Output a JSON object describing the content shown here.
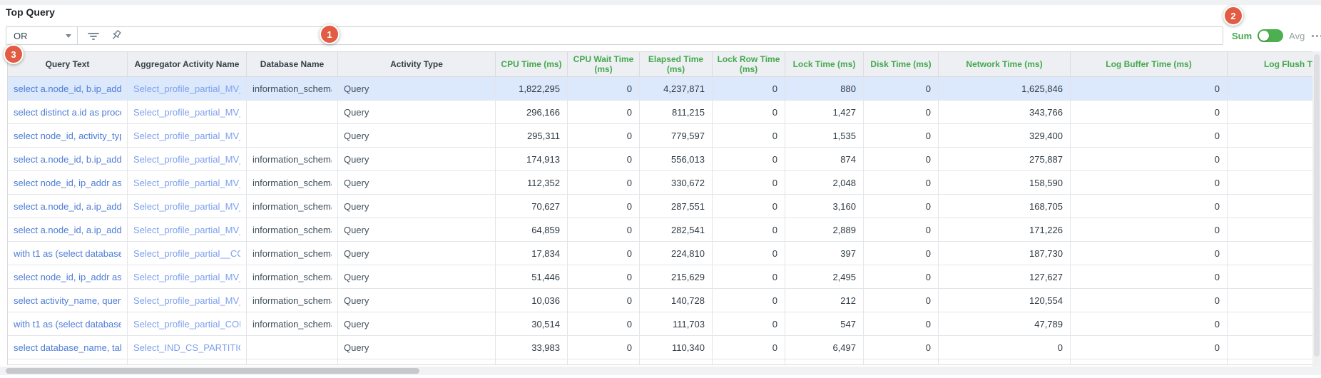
{
  "page": {
    "title": "Top Query"
  },
  "toolbar": {
    "operator": "OR",
    "filter_value": "",
    "aggregation": {
      "sum_label": "Sum",
      "avg_label": "Avg",
      "selected": "Sum"
    }
  },
  "annotations": {
    "step1": "1",
    "step2": "2",
    "step3": "3"
  },
  "colors": {
    "accent_green": "#4caf50",
    "badge_red": "#e25c44",
    "link_primary": "#4d7cd6",
    "link_secondary": "#7da0ee",
    "selected_row_bg": "#dce8fc",
    "header_bg": "#edeff2"
  },
  "table": {
    "columns": [
      {
        "label": "Query Text",
        "header_style": "dark",
        "type": "link"
      },
      {
        "label": "Aggregator Activity Name",
        "header_style": "dark",
        "type": "link2"
      },
      {
        "label": "Database Name",
        "header_style": "dark",
        "type": "text"
      },
      {
        "label": "Activity Type",
        "header_style": "dark",
        "type": "text"
      },
      {
        "label": "CPU Time (ms)",
        "header_style": "green",
        "type": "num"
      },
      {
        "label": "CPU Wait Time (ms)",
        "header_style": "green",
        "type": "num"
      },
      {
        "label": "Elapsed Time (ms)",
        "header_style": "green",
        "type": "num"
      },
      {
        "label": "Lock Row Time (ms)",
        "header_style": "green",
        "type": "num"
      },
      {
        "label": "Lock Time (ms)",
        "header_style": "green",
        "type": "num"
      },
      {
        "label": "Disk Time (ms)",
        "header_style": "green",
        "type": "num"
      },
      {
        "label": "Network Time (ms)",
        "header_style": "green",
        "type": "num"
      },
      {
        "label": "Log Buffer Time (ms)",
        "header_style": "green",
        "type": "num"
      },
      {
        "label": "Log Flush Time (ms)",
        "header_style": "green",
        "type": "num"
      }
    ],
    "rows": [
      {
        "selected": true,
        "cells": [
          "select a.node_id, b.ip_addr as ...",
          "Select_profile_partial_MV_PE...",
          "information_schema",
          "Query",
          "1,822,295",
          "0",
          "4,237,871",
          "0",
          "880",
          "0",
          "1,625,846",
          "0",
          ""
        ]
      },
      {
        "selected": false,
        "cells": [
          "select distinct a.id as process...",
          "Select_profile_partial_MV_PE...",
          "",
          "Query",
          "296,166",
          "0",
          "811,215",
          "0",
          "1,427",
          "0",
          "343,766",
          "0",
          ""
        ]
      },
      {
        "selected": false,
        "cells": [
          "select node_id, activity_type, a...",
          "Select_profile_partial_MV_PE...",
          "",
          "Query",
          "295,311",
          "0",
          "779,597",
          "0",
          "1,535",
          "0",
          "329,400",
          "0",
          ""
        ]
      },
      {
        "selected": false,
        "cells": [
          "select a.node_id, b.ip_addr as ...",
          "Select_profile_partial_MV_PE...",
          "information_schema",
          "Query",
          "174,913",
          "0",
          "556,013",
          "0",
          "874",
          "0",
          "275,887",
          "0",
          ""
        ]
      },
      {
        "selected": false,
        "cells": [
          "select node_id, ip_addr as hos...",
          "Select_profile_partial_MV_NO...",
          "information_schema",
          "Query",
          "112,352",
          "0",
          "330,672",
          "0",
          "2,048",
          "0",
          "158,590",
          "0",
          ""
        ]
      },
      {
        "selected": false,
        "cells": [
          "select a.node_id, a.ip_addr as ...",
          "Select_profile_partial_MV_NO...",
          "information_schema",
          "Query",
          "70,627",
          "0",
          "287,551",
          "0",
          "3,160",
          "0",
          "168,705",
          "0",
          ""
        ]
      },
      {
        "selected": false,
        "cells": [
          "select a.node_id, a.ip_addr as ...",
          "Select_profile_partial_MV_NO...",
          "information_schema",
          "Query",
          "64,859",
          "0",
          "282,541",
          "0",
          "2,889",
          "0",
          "171,226",
          "0",
          ""
        ]
      },
      {
        "selected": false,
        "cells": [
          "with t1 as (select database_n...",
          "Select_profile_partial__COLU...",
          "information_schema",
          "Query",
          "17,834",
          "0",
          "224,810",
          "0",
          "397",
          "0",
          "187,730",
          "0",
          ""
        ]
      },
      {
        "selected": false,
        "cells": [
          "select node_id, ip_addr as hos...",
          "Select_profile_partial_MV_NO...",
          "information_schema",
          "Query",
          "51,446",
          "0",
          "215,629",
          "0",
          "2,495",
          "0",
          "127,627",
          "0",
          ""
        ]
      },
      {
        "selected": false,
        "cells": [
          "select activity_name, query_te...",
          "Select_profile_partial_MV_QU...",
          "information_schema",
          "Query",
          "10,036",
          "0",
          "140,728",
          "0",
          "212",
          "0",
          "120,554",
          "0",
          ""
        ]
      },
      {
        "selected": false,
        "cells": [
          "with t1 as (select database_n...",
          "Select_profile_partial_COLUM...",
          "information_schema",
          "Query",
          "30,514",
          "0",
          "111,703",
          "0",
          "547",
          "0",
          "47,789",
          "0",
          ""
        ]
      },
      {
        "selected": false,
        "cells": [
          "select database_name, table_...",
          "Select_IND_CS_PARTITION_R...",
          "",
          "Query",
          "33,983",
          "0",
          "110,340",
          "0",
          "6,497",
          "0",
          "0",
          "0",
          ""
        ]
      }
    ]
  }
}
